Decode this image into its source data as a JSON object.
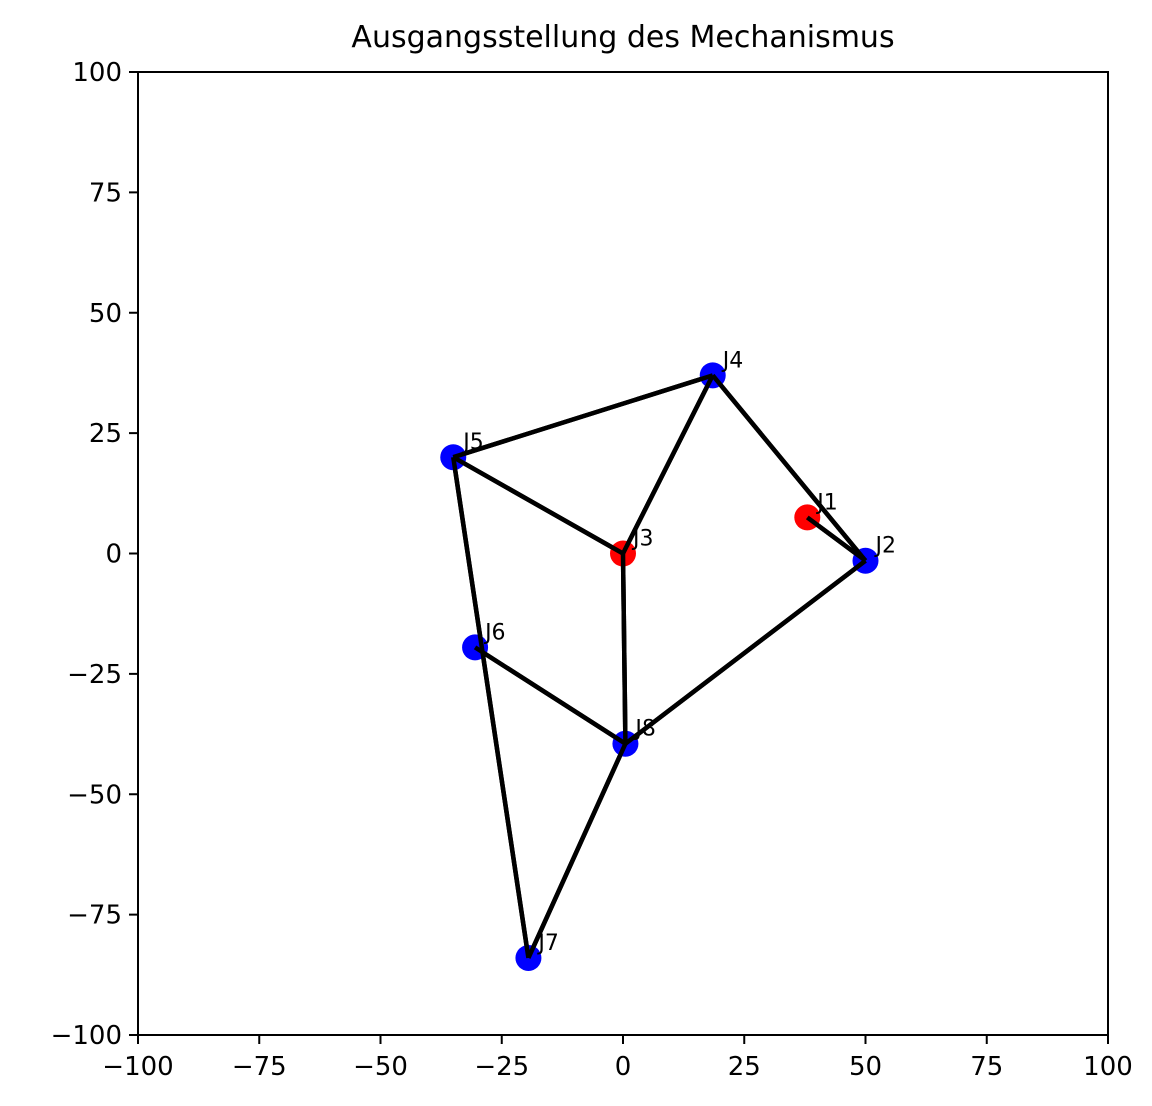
{
  "chart_data": {
    "type": "scatter",
    "title": "Ausgangsstellung des Mechanismus",
    "xlabel": "",
    "ylabel": "",
    "xlim": [
      -100,
      100
    ],
    "ylim": [
      -100,
      100
    ],
    "xticks": [
      -100,
      -75,
      -50,
      -25,
      0,
      25,
      50,
      75,
      100
    ],
    "yticks": [
      -100,
      -75,
      -50,
      -25,
      0,
      25,
      50,
      75,
      100
    ],
    "grid": false,
    "legend": "none",
    "points": [
      {
        "label": "J1",
        "x": 38,
        "y": 7.5,
        "color": "#ff0000"
      },
      {
        "label": "J2",
        "x": 50,
        "y": -1.5,
        "color": "#0000ff"
      },
      {
        "label": "J3",
        "x": 0,
        "y": 0,
        "color": "#ff0000"
      },
      {
        "label": "J4",
        "x": 18.5,
        "y": 37,
        "color": "#0000ff"
      },
      {
        "label": "J5",
        "x": -35,
        "y": 20,
        "color": "#0000ff"
      },
      {
        "label": "J6",
        "x": -30.5,
        "y": -19.5,
        "color": "#0000ff"
      },
      {
        "label": "J7",
        "x": -19.5,
        "y": -84,
        "color": "#0000ff"
      },
      {
        "label": "J8",
        "x": 0.5,
        "y": -39.5,
        "color": "#0000ff"
      }
    ],
    "links": [
      [
        "J1",
        "J2"
      ],
      [
        "J2",
        "J4"
      ],
      [
        "J4",
        "J5"
      ],
      [
        "J4",
        "J3"
      ],
      [
        "J5",
        "J3"
      ],
      [
        "J3",
        "J8"
      ],
      [
        "J2",
        "J8"
      ],
      [
        "J5",
        "J7"
      ],
      [
        "J6",
        "J8"
      ],
      [
        "J8",
        "J7"
      ]
    ],
    "link_color": "#000000"
  }
}
